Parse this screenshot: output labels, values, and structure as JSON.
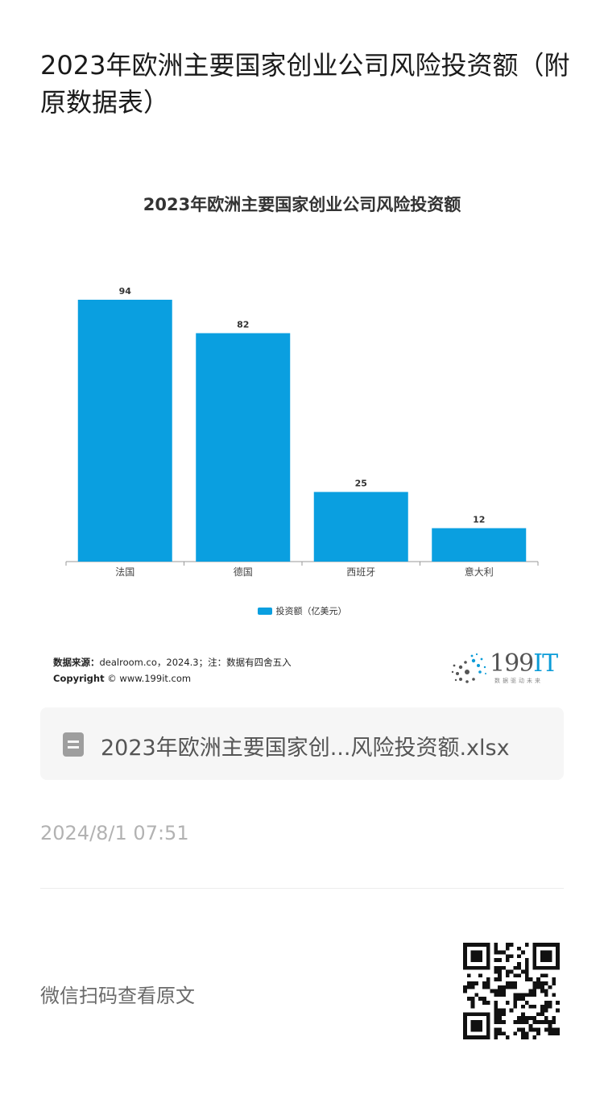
{
  "article": {
    "title": "2023年欧洲主要国家创业公司风险投资额（附原数据表）"
  },
  "chart": {
    "title": "2023年欧洲主要国家创业公司风险投资额",
    "legend": "投资额（亿美元）",
    "bar_color": "#0a9fe0"
  },
  "chart_data": {
    "type": "bar",
    "title": "2023年欧洲主要国家创业公司风险投资额",
    "categories": [
      "法国",
      "德国",
      "西班牙",
      "意大利"
    ],
    "series": [
      {
        "name": "投资额（亿美元）",
        "values": [
          94,
          82,
          25,
          12
        ]
      }
    ],
    "data_labels": [
      "94",
      "82",
      "25",
      "12"
    ],
    "ylim": [
      0,
      94
    ],
    "grid": false,
    "legend_position": "bottom"
  },
  "source": {
    "label": "数据来源：",
    "text": "dealroom.co，2024.3；注：数据有四舍五入",
    "copyright_label": "Copyright",
    "copyright_text": "© www.199it.com"
  },
  "logo": {
    "text_main": "199",
    "text_accent": "IT",
    "tagline": "数据驱动未来"
  },
  "file": {
    "icon": "document-icon",
    "name": "2023年欧洲主要国家创...风险投资额.xlsx"
  },
  "meta": {
    "timestamp": "2024/8/1 07:51",
    "qr_caption": "微信扫码查看原文"
  }
}
